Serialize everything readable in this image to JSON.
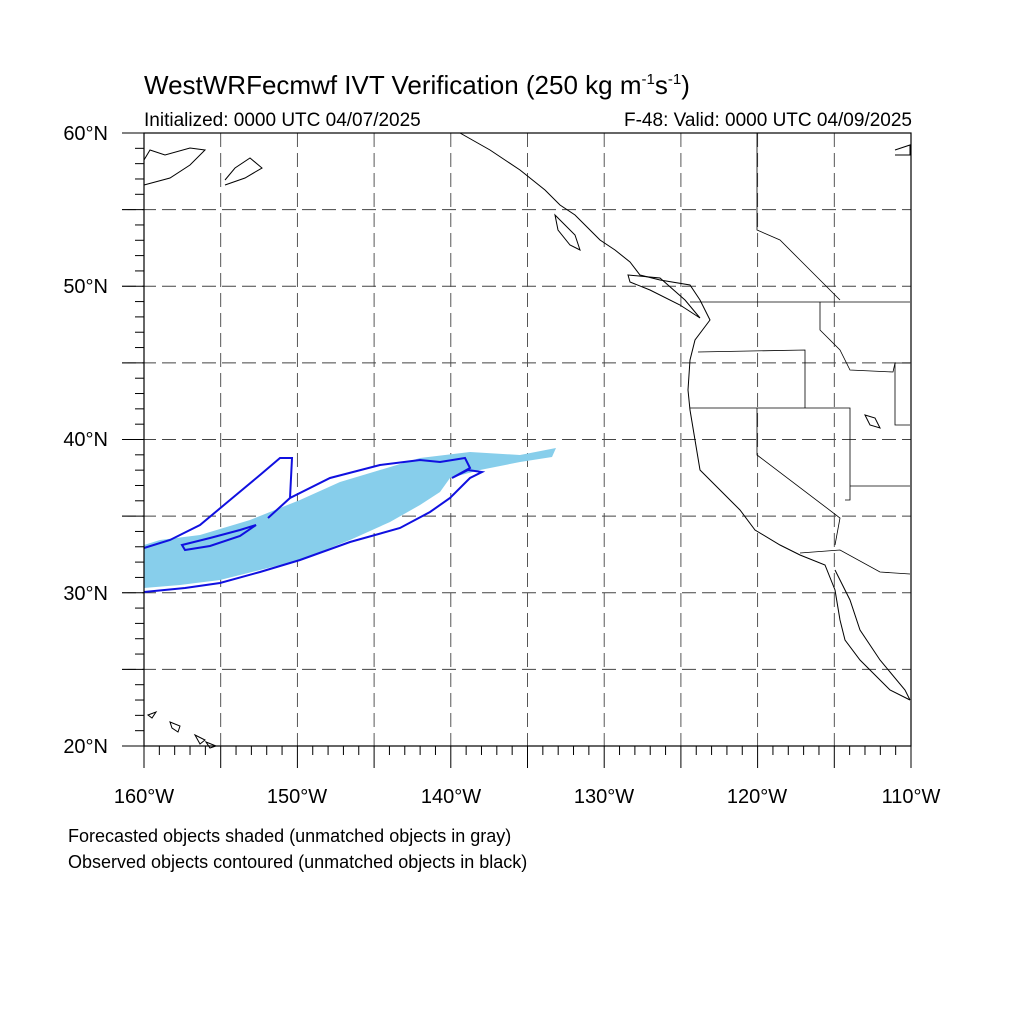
{
  "title": {
    "prefix": "WestWRFecmwf IVT Verification (250 kg m",
    "sup1": "-1",
    "mid": "s",
    "sup2": "-1",
    "suffix": ")"
  },
  "initialized": "Initialized: 0000 UTC 04/07/2025",
  "valid": "F-48: Valid: 0000 UTC 04/09/2025",
  "map": {
    "lon_range": [
      -160,
      -110
    ],
    "lat_range": [
      20,
      60
    ],
    "grid_lon_step": 5,
    "grid_lat_step": 5,
    "lat_labels": [
      "60°N",
      "50°N",
      "40°N",
      "30°N",
      "20°N"
    ],
    "lon_labels": [
      "160°W",
      "150°W",
      "140°W",
      "130°W",
      "120°W",
      "110°W"
    ],
    "forecast_color": "#87CEEB",
    "observed_color": "#1010E0",
    "coast_color": "#000000",
    "grid_style": "dashed"
  },
  "legend": {
    "line1": "Forecasted objects shaded (unmatched objects in gray)",
    "line2": "Observed objects contoured (unmatched objects in black)"
  }
}
